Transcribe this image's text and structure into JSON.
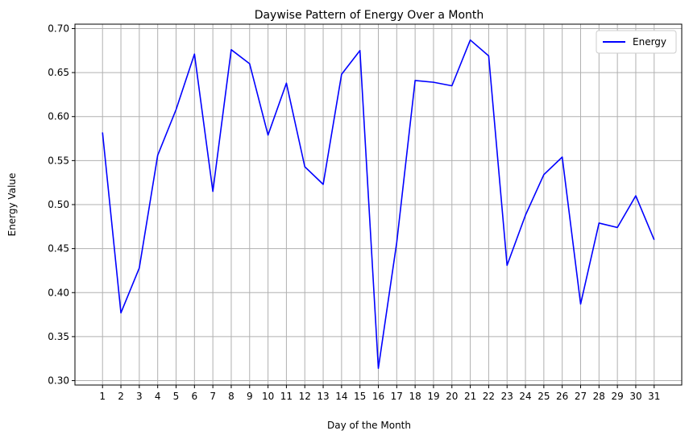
{
  "chart_data": {
    "type": "line",
    "title": "Daywise Pattern of Energy Over a Month",
    "xlabel": "Day of the Month",
    "ylabel": "Energy Value",
    "x": [
      1,
      2,
      3,
      4,
      5,
      6,
      7,
      8,
      9,
      10,
      11,
      12,
      13,
      14,
      15,
      16,
      17,
      18,
      19,
      20,
      21,
      22,
      23,
      24,
      25,
      26,
      27,
      28,
      29,
      30,
      31
    ],
    "series": [
      {
        "name": "Energy",
        "color": "#0000ff",
        "values": [
          0.582,
          0.377,
          0.428,
          0.556,
          0.608,
          0.671,
          0.515,
          0.676,
          0.66,
          0.579,
          0.638,
          0.543,
          0.523,
          0.648,
          0.675,
          0.314,
          0.457,
          0.641,
          0.639,
          0.635,
          0.687,
          0.669,
          0.431,
          0.488,
          0.534,
          0.554,
          0.387,
          0.479,
          0.474,
          0.51,
          0.46
        ]
      }
    ],
    "ylim": [
      0.295,
      0.705
    ],
    "yticks": [
      "0.30",
      "0.35",
      "0.40",
      "0.45",
      "0.50",
      "0.55",
      "0.60",
      "0.65",
      "0.70"
    ],
    "xticks": [
      "1",
      "2",
      "3",
      "4",
      "5",
      "6",
      "7",
      "8",
      "9",
      "10",
      "11",
      "12",
      "13",
      "14",
      "15",
      "16",
      "17",
      "18",
      "19",
      "20",
      "21",
      "22",
      "23",
      "24",
      "25",
      "26",
      "27",
      "28",
      "29",
      "30",
      "31"
    ],
    "grid": true,
    "legend_position": "top-right"
  }
}
